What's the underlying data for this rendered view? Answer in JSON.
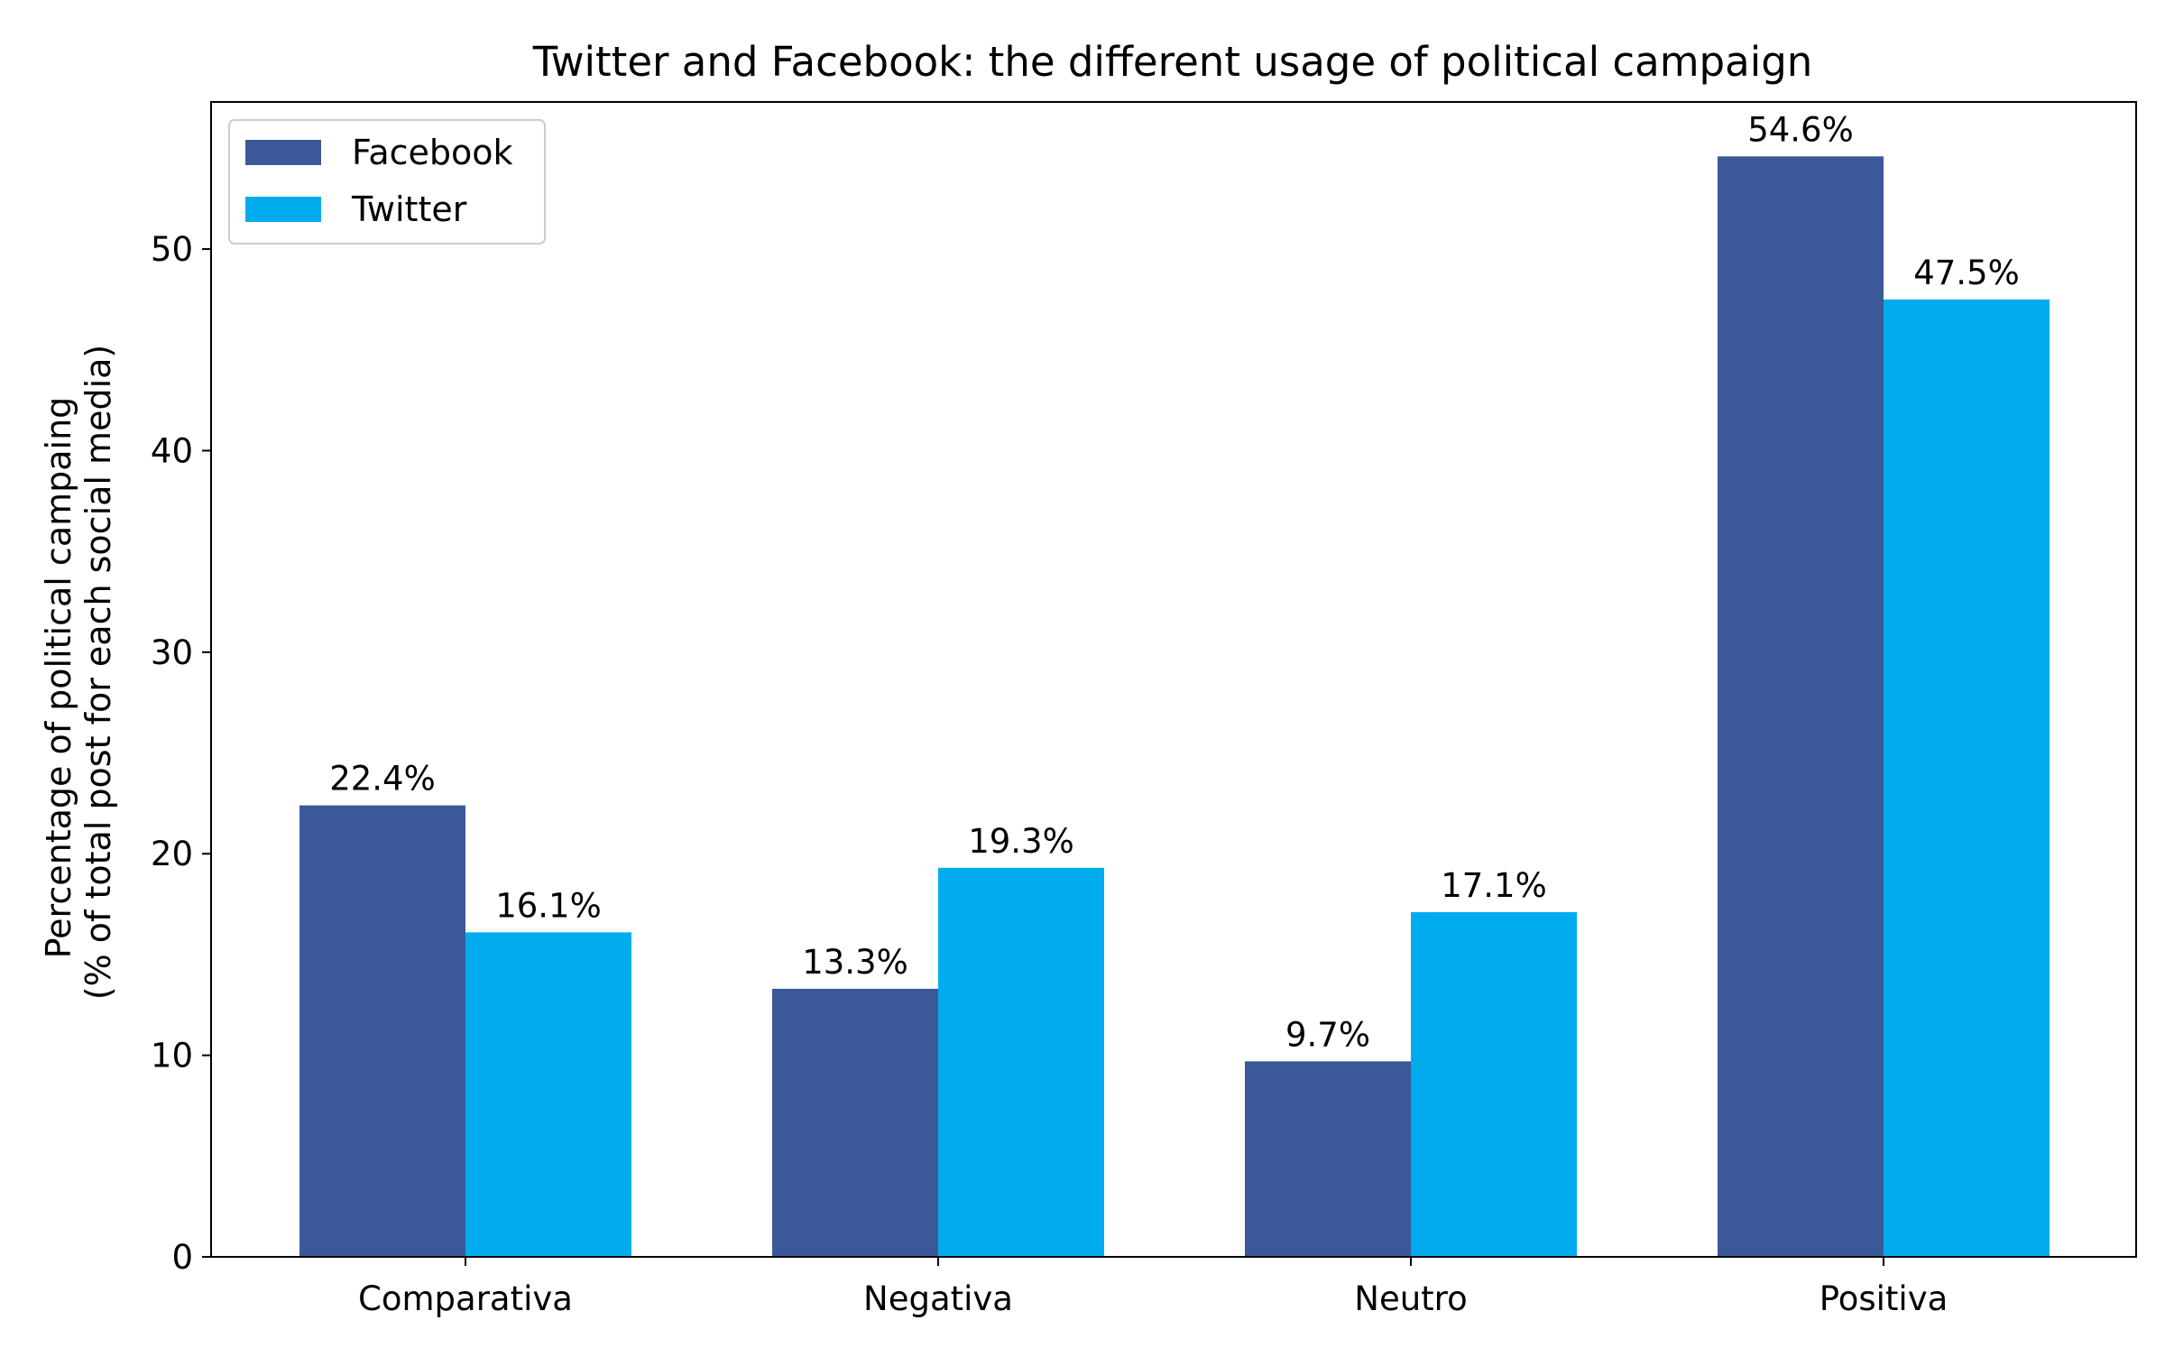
{
  "chart_data": {
    "type": "bar",
    "title": "Twitter and Facebook: the different usage of political campaign",
    "xlabel": "",
    "ylabel": "Percentage of political campaing\n(% of total post for each social media)",
    "ylabel_lines": [
      "Percentage of political campaing",
      "(% of total post for each social media)"
    ],
    "categories": [
      "Comparativa",
      "Negativa",
      "Neutro",
      "Positiva"
    ],
    "series": [
      {
        "name": "Facebook",
        "color": "#3b5998",
        "values": [
          22.4,
          13.3,
          9.7,
          54.6
        ],
        "labels": [
          "22.4%",
          "13.3%",
          "9.7%",
          "54.6%"
        ]
      },
      {
        "name": "Twitter",
        "color": "#00acee",
        "values": [
          16.1,
          19.3,
          17.1,
          47.5
        ],
        "labels": [
          "16.1%",
          "19.3%",
          "17.1%",
          "47.5%"
        ]
      }
    ],
    "ylim": [
      0,
      57.3
    ],
    "yticks": [
      0,
      10,
      20,
      30,
      40,
      50
    ],
    "grid": false,
    "legend_position": "top-left"
  }
}
